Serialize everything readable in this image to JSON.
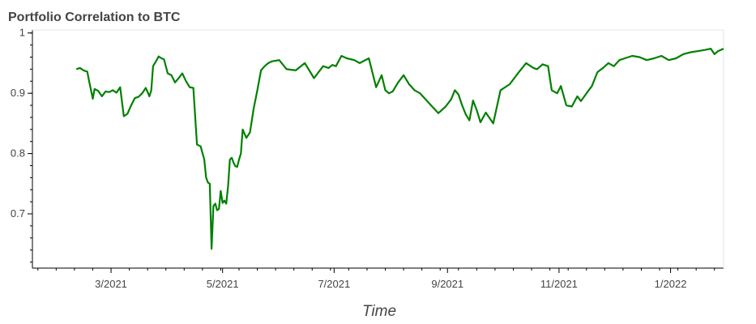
{
  "chart_data": {
    "type": "line",
    "title": "Portfolio Correlation to BTC",
    "xlabel": "Time",
    "ylabel": "",
    "ylim": [
      0.61,
      1.005
    ],
    "xlim": [
      "2021-01-17",
      "2022-01-30"
    ],
    "grid": false,
    "yticks": [
      {
        "value": 1,
        "label": "1"
      },
      {
        "value": 0.9,
        "label": "0.9"
      },
      {
        "value": 0.8,
        "label": "0.8"
      },
      {
        "value": 0.7,
        "label": "0.7"
      }
    ],
    "xticks": [
      {
        "value": "2021-03-01",
        "label": "3/2021"
      },
      {
        "value": "2021-05-01",
        "label": "5/2021"
      },
      {
        "value": "2021-07-01",
        "label": "7/2021"
      },
      {
        "value": "2021-09-01",
        "label": "9/2021"
      },
      {
        "value": "2021-11-01",
        "label": "11/2021"
      },
      {
        "value": "2022-01-01",
        "label": "1/2022"
      }
    ],
    "series": [
      {
        "color": "#008000",
        "x": [
          "2021-02-10",
          "2021-02-12",
          "2021-02-14",
          "2021-02-16",
          "2021-02-17",
          "2021-02-19",
          "2021-02-20",
          "2021-02-22",
          "2021-02-24",
          "2021-02-26",
          "2021-02-28",
          "2021-03-02",
          "2021-03-04",
          "2021-03-06",
          "2021-03-08",
          "2021-03-10",
          "2021-03-11",
          "2021-03-12",
          "2021-03-14",
          "2021-03-16",
          "2021-03-18",
          "2021-03-20",
          "2021-03-22",
          "2021-03-23",
          "2021-03-24",
          "2021-03-26",
          "2021-03-27",
          "2021-03-28",
          "2021-03-30",
          "2021-04-01",
          "2021-04-03",
          "2021-04-05",
          "2021-04-07",
          "2021-04-09",
          "2021-04-11",
          "2021-04-13",
          "2021-04-15",
          "2021-04-17",
          "2021-04-19",
          "2021-04-21",
          "2021-04-22",
          "2021-04-23",
          "2021-04-24",
          "2021-04-25",
          "2021-04-26",
          "2021-04-27",
          "2021-04-28",
          "2021-04-29",
          "2021-04-30",
          "2021-05-01",
          "2021-05-02",
          "2021-05-03",
          "2021-05-04",
          "2021-05-05",
          "2021-05-06",
          "2021-05-07",
          "2021-05-08",
          "2021-05-09",
          "2021-05-10",
          "2021-05-11",
          "2021-05-12",
          "2021-05-14",
          "2021-05-16",
          "2021-05-18",
          "2021-05-20",
          "2021-05-22",
          "2021-05-24",
          "2021-05-26",
          "2021-05-28",
          "2021-05-30",
          "2021-06-01",
          "2021-06-05",
          "2021-06-10",
          "2021-06-15",
          "2021-06-20",
          "2021-06-25",
          "2021-06-28",
          "2021-06-30",
          "2021-07-02",
          "2021-07-05",
          "2021-07-08",
          "2021-07-12",
          "2021-07-15",
          "2021-07-20",
          "2021-07-24",
          "2021-07-27",
          "2021-07-29",
          "2021-07-31",
          "2021-08-02",
          "2021-08-05",
          "2021-08-08",
          "2021-08-11",
          "2021-08-14",
          "2021-08-17",
          "2021-08-20",
          "2021-08-23",
          "2021-08-27",
          "2021-08-31",
          "2021-09-03",
          "2021-09-05",
          "2021-09-07",
          "2021-09-09",
          "2021-09-11",
          "2021-09-13",
          "2021-09-15",
          "2021-09-17",
          "2021-09-19",
          "2021-09-22",
          "2021-09-26",
          "2021-09-30",
          "2021-10-05",
          "2021-10-10",
          "2021-10-14",
          "2021-10-18",
          "2021-10-20",
          "2021-10-23",
          "2021-10-26",
          "2021-10-28",
          "2021-10-31",
          "2021-11-02",
          "2021-11-05",
          "2021-11-08",
          "2021-11-11",
          "2021-11-13",
          "2021-11-16",
          "2021-11-19",
          "2021-11-22",
          "2021-11-25",
          "2021-11-28",
          "2021-12-01",
          "2021-12-04",
          "2021-12-07",
          "2021-12-11",
          "2021-12-15",
          "2021-12-19",
          "2021-12-23",
          "2021-12-27",
          "2021-12-31",
          "2022-01-04",
          "2022-01-08",
          "2022-01-12",
          "2022-01-16",
          "2022-01-20",
          "2022-01-23",
          "2022-01-25",
          "2022-01-27",
          "2022-01-30"
        ],
        "y": [
          0.94,
          0.942,
          0.938,
          0.936,
          0.92,
          0.891,
          0.907,
          0.904,
          0.895,
          0.903,
          0.902,
          0.905,
          0.901,
          0.91,
          0.862,
          0.866,
          0.873,
          0.88,
          0.892,
          0.894,
          0.9,
          0.909,
          0.895,
          0.905,
          0.945,
          0.955,
          0.961,
          0.959,
          0.956,
          0.933,
          0.93,
          0.918,
          0.925,
          0.933,
          0.92,
          0.91,
          0.909,
          0.815,
          0.812,
          0.79,
          0.76,
          0.752,
          0.75,
          0.642,
          0.713,
          0.717,
          0.706,
          0.708,
          0.738,
          0.718,
          0.722,
          0.717,
          0.746,
          0.79,
          0.793,
          0.785,
          0.779,
          0.778,
          0.79,
          0.8,
          0.84,
          0.826,
          0.835,
          0.875,
          0.905,
          0.938,
          0.945,
          0.95,
          0.953,
          0.954,
          0.955,
          0.94,
          0.938,
          0.95,
          0.925,
          0.945,
          0.942,
          0.947,
          0.945,
          0.962,
          0.958,
          0.955,
          0.95,
          0.958,
          0.91,
          0.93,
          0.905,
          0.9,
          0.903,
          0.918,
          0.93,
          0.915,
          0.905,
          0.9,
          0.89,
          0.88,
          0.867,
          0.878,
          0.89,
          0.905,
          0.898,
          0.88,
          0.865,
          0.855,
          0.888,
          0.872,
          0.852,
          0.868,
          0.85,
          0.905,
          0.915,
          0.935,
          0.95,
          0.942,
          0.94,
          0.948,
          0.945,
          0.905,
          0.9,
          0.912,
          0.88,
          0.878,
          0.895,
          0.887,
          0.9,
          0.912,
          0.935,
          0.942,
          0.95,
          0.945,
          0.955,
          0.958,
          0.962,
          0.96,
          0.955,
          0.958,
          0.962,
          0.955,
          0.958,
          0.965,
          0.968,
          0.97,
          0.972,
          0.974,
          0.965,
          0.97,
          0.974
        ]
      }
    ]
  }
}
